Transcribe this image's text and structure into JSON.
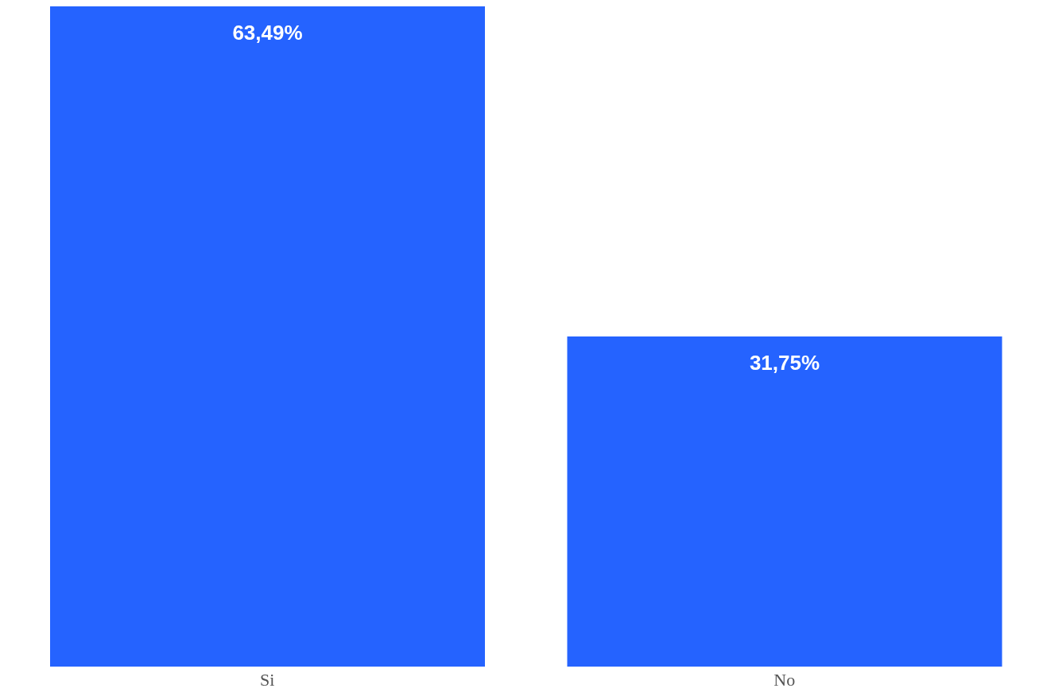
{
  "chart_data": {
    "type": "bar",
    "categories": [
      "Si",
      "No"
    ],
    "values": [
      63.49,
      31.75
    ],
    "value_labels": [
      "63,49%",
      "31,75%"
    ],
    "color": "#2563ff"
  }
}
